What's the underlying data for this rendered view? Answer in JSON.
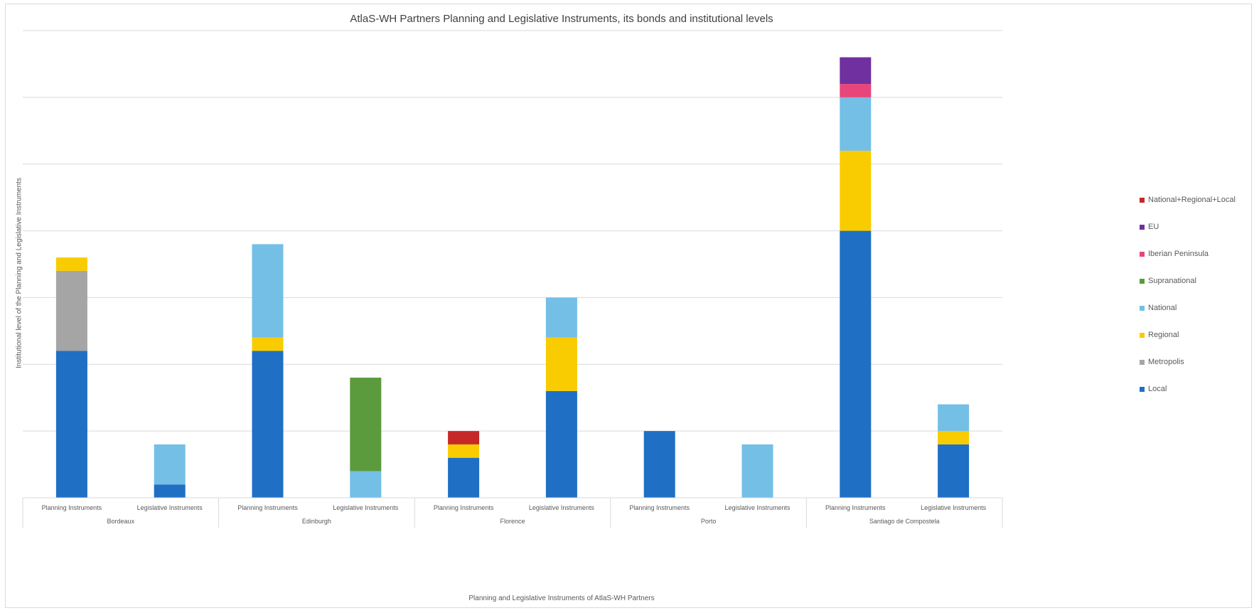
{
  "chart_data": {
    "type": "bar",
    "stacked": true,
    "title": "AtlaS-WH Partners Planning and Legislative Instruments, its bonds and institutional levels",
    "xlabel": "Planning and Legislative Instruments of AtlaS-WH Partners",
    "ylabel": "Institutional level of the Planning and Legislative Instruments",
    "ylim": [
      0,
      35
    ],
    "grid": true,
    "legend_position": "right",
    "groups": [
      {
        "name": "Bordeaux",
        "categories": [
          "Planning Instruments",
          "Legislative Instruments"
        ]
      },
      {
        "name": "Edinburgh",
        "categories": [
          "Planning Instruments",
          "Legislative Instruments"
        ]
      },
      {
        "name": "Florence",
        "categories": [
          "Planning Instruments",
          "Legislative Instruments"
        ]
      },
      {
        "name": "Porto",
        "categories": [
          "Planning Instruments",
          "Legislative Instruments"
        ]
      },
      {
        "name": "Santiago de Compostela",
        "categories": [
          "Planning Instruments",
          "Legislative Instruments"
        ]
      }
    ],
    "series": [
      {
        "name": "Local",
        "color": "#1f6fc4",
        "values": [
          11,
          1,
          11,
          0,
          3,
          8,
          5,
          0,
          20,
          4
        ]
      },
      {
        "name": "Metropolis",
        "color": "#a5a5a5",
        "values": [
          6,
          0,
          0,
          0,
          0,
          0,
          0,
          0,
          0,
          0
        ]
      },
      {
        "name": "Regional",
        "color": "#f8cc00",
        "values": [
          1,
          0,
          1,
          0,
          1,
          4,
          0,
          0,
          6,
          1
        ]
      },
      {
        "name": "National",
        "color": "#74bfe6",
        "values": [
          0,
          3,
          7,
          2,
          0,
          3,
          0,
          4,
          4,
          2
        ]
      },
      {
        "name": "Supranational",
        "color": "#5b9b3d",
        "values": [
          0,
          0,
          0,
          7,
          0,
          0,
          0,
          0,
          0,
          0
        ]
      },
      {
        "name": "Iberian Peninsula",
        "color": "#e8457a",
        "values": [
          0,
          0,
          0,
          0,
          0,
          0,
          0,
          0,
          1,
          0
        ]
      },
      {
        "name": "EU",
        "color": "#7030a0",
        "values": [
          0,
          0,
          0,
          0,
          0,
          0,
          0,
          0,
          2,
          0
        ]
      },
      {
        "name": "National+Regional+Local",
        "color": "#c62828",
        "values": [
          0,
          0,
          0,
          0,
          1,
          0,
          0,
          0,
          0,
          0
        ]
      }
    ],
    "legend_order": [
      "National+Regional+Local",
      "EU",
      "Iberian Peninsula",
      "Supranational",
      "National",
      "Regional",
      "Metropolis",
      "Local"
    ]
  }
}
